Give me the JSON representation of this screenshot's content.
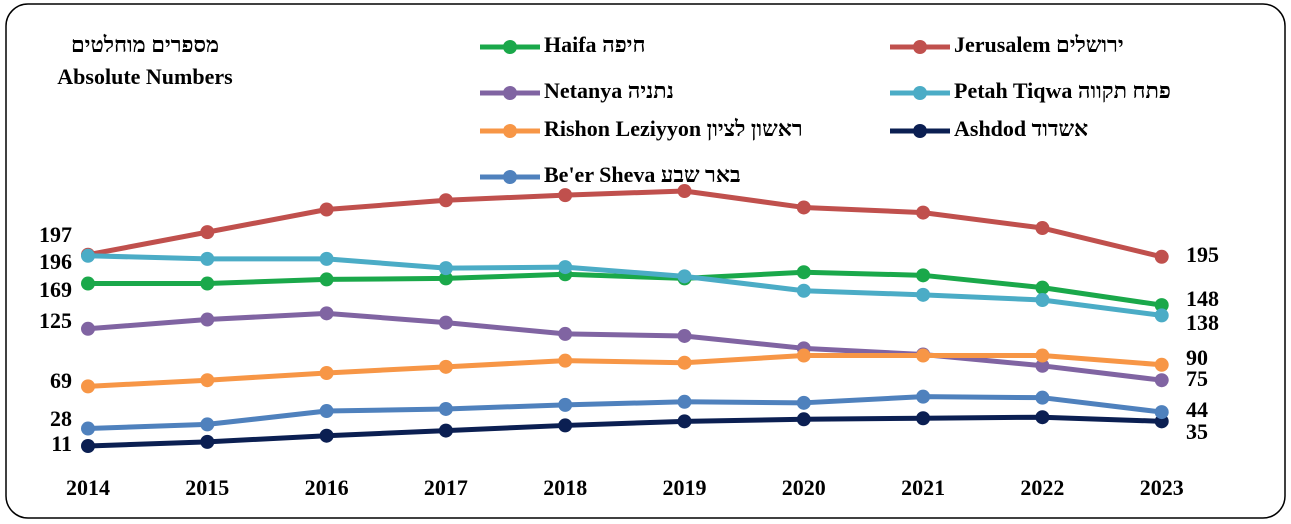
{
  "chart_data": {
    "type": "line",
    "title": [
      "מספרים מוחלטים",
      "Absolute Numbers"
    ],
    "categories": [
      "2014",
      "2015",
      "2016",
      "2017",
      "2018",
      "2019",
      "2020",
      "2021",
      "2022",
      "2023"
    ],
    "series": [
      {
        "name": "Haifa חיפה",
        "color": "#1aa84a",
        "values": [
          169,
          169,
          173,
          174,
          178,
          174,
          180,
          177,
          165,
          148
        ]
      },
      {
        "name": "Jerusalem ירושלים",
        "color": "#c0504d",
        "values": [
          197,
          219,
          241,
          250,
          255,
          259,
          243,
          238,
          223,
          195
        ]
      },
      {
        "name": "Netanya נתניה",
        "color": "#8064a2",
        "values": [
          125,
          134,
          140,
          131,
          120,
          118,
          106,
          100,
          89,
          75
        ]
      },
      {
        "name": "Petah Tiqwa פתח תקווה",
        "color": "#4bacc6",
        "values": [
          196,
          193,
          193,
          184,
          185,
          176,
          162,
          158,
          153,
          138
        ]
      },
      {
        "name": "Rishon Leziyyon ראשון לציון",
        "color": "#f79646",
        "values": [
          69,
          75,
          82,
          88,
          94,
          92,
          99,
          99,
          99,
          90
        ]
      },
      {
        "name": "Ashdod אשדוד",
        "color": "#0b1f52",
        "values": [
          11,
          15,
          21,
          26,
          31,
          35,
          37,
          38,
          39,
          35
        ]
      },
      {
        "name": "Be'er Sheva באר שבע",
        "color": "#4f81bd",
        "values": [
          28,
          32,
          45,
          47,
          51,
          54,
          53,
          59,
          58,
          44
        ]
      }
    ]
  }
}
